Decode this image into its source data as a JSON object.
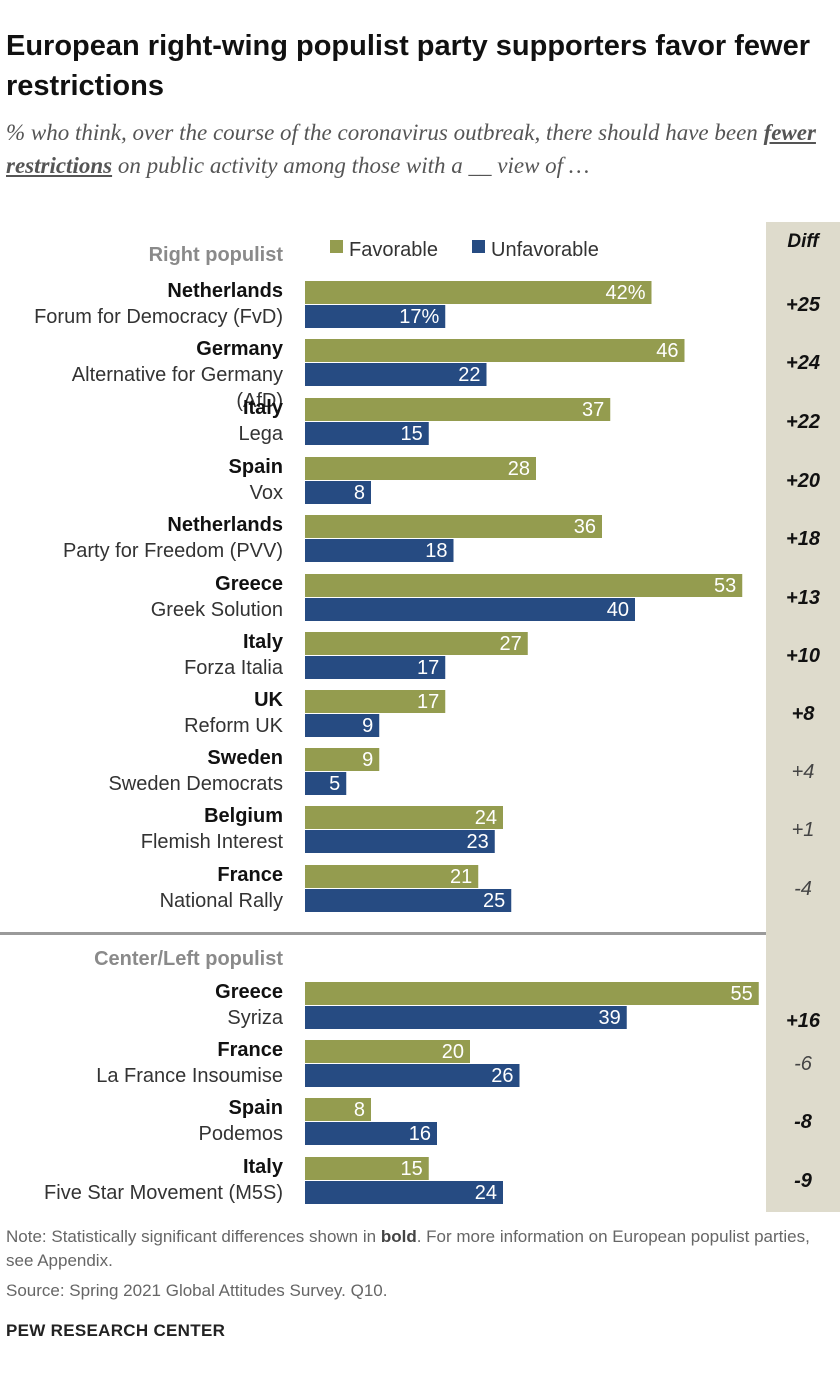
{
  "title": "European right-wing populist party supporters favor fewer restrictions",
  "subtitle": {
    "part1": "% who think, over the course of the coronavirus outbreak, there should have been ",
    "emphasis": "fewer restrictions",
    "part2": " on public activity among those with a __ view of …"
  },
  "note": {
    "prefix": "Note: Statistically significant differences shown in ",
    "bold_word": "bold",
    "suffix": ". For more information on European populist parties, see Appendix."
  },
  "source": "Source: Spring 2021 Global Attitudes Survey. Q10.",
  "organization": "PEW RESEARCH CENTER",
  "chart_data": {
    "type": "bar",
    "orientation": "horizontal",
    "diff_header": "Diff",
    "legend": {
      "placement": "top",
      "entries": [
        {
          "name": "Favorable",
          "color": "#949c4f"
        },
        {
          "name": "Unfavorable",
          "color": "#264b82"
        }
      ]
    },
    "xlim": [
      0,
      55
    ],
    "groups": [
      {
        "label": "Right populist",
        "rows": [
          {
            "country": "Netherlands",
            "party": "Forum for Democracy (FvD)",
            "favorable": 42,
            "unfavorable": 17,
            "fav_label": "42%",
            "unfav_label": "17%",
            "diff": "+25",
            "significant": true
          },
          {
            "country": "Germany",
            "party": "Alternative for Germany",
            "party_line2": "(AfD)",
            "favorable": 46,
            "unfavorable": 22,
            "fav_label": "46",
            "unfav_label": "22",
            "diff": "+24",
            "significant": true
          },
          {
            "country": "Italy",
            "party": "Lega",
            "favorable": 37,
            "unfavorable": 15,
            "fav_label": "37",
            "unfav_label": "15",
            "diff": "+22",
            "significant": true
          },
          {
            "country": "Spain",
            "party": "Vox",
            "favorable": 28,
            "unfavorable": 8,
            "fav_label": "28",
            "unfav_label": "8",
            "diff": "+20",
            "significant": true
          },
          {
            "country": "Netherlands",
            "party": "Party for Freedom (PVV)",
            "favorable": 36,
            "unfavorable": 18,
            "fav_label": "36",
            "unfav_label": "18",
            "diff": "+18",
            "significant": true
          },
          {
            "country": "Greece",
            "party": "Greek Solution",
            "favorable": 53,
            "unfavorable": 40,
            "fav_label": "53",
            "unfav_label": "40",
            "diff": "+13",
            "significant": true
          },
          {
            "country": "Italy",
            "party": "Forza Italia",
            "favorable": 27,
            "unfavorable": 17,
            "fav_label": "27",
            "unfav_label": "17",
            "diff": "+10",
            "significant": true
          },
          {
            "country": "UK",
            "party": "Reform UK",
            "favorable": 17,
            "unfavorable": 9,
            "fav_label": "17",
            "unfav_label": "9",
            "diff": "+8",
            "significant": true
          },
          {
            "country": "Sweden",
            "party": "Sweden Democrats",
            "favorable": 9,
            "unfavorable": 5,
            "fav_label": "9",
            "unfav_label": "5",
            "diff": "+4",
            "significant": false
          },
          {
            "country": "Belgium",
            "party": "Flemish Interest",
            "favorable": 24,
            "unfavorable": 23,
            "fav_label": "24",
            "unfav_label": "23",
            "diff": "+1",
            "significant": false
          },
          {
            "country": "France",
            "party": "National Rally",
            "favorable": 21,
            "unfavorable": 25,
            "fav_label": "21",
            "unfav_label": "25",
            "diff": "-4",
            "significant": false
          }
        ]
      },
      {
        "label": "Center/Left populist",
        "rows": [
          {
            "country": "Greece",
            "party": "Syriza",
            "favorable": 55,
            "unfavorable": 39,
            "fav_label": "55",
            "unfav_label": "39",
            "diff": "+16",
            "significant": true
          },
          {
            "country": "France",
            "party": "La France Insoumise",
            "favorable": 20,
            "unfavorable": 26,
            "fav_label": "20",
            "unfav_label": "26",
            "diff": "-6",
            "significant": false
          },
          {
            "country": "Spain",
            "party": "Podemos",
            "favorable": 8,
            "unfavorable": 16,
            "fav_label": "8",
            "unfav_label": "16",
            "diff": "-8",
            "significant": true
          },
          {
            "country": "Italy",
            "party": "Five Star Movement (M5S)",
            "favorable": 15,
            "unfavorable": 24,
            "fav_label": "15",
            "unfav_label": "24",
            "diff": "-9",
            "significant": true
          }
        ]
      }
    ]
  }
}
